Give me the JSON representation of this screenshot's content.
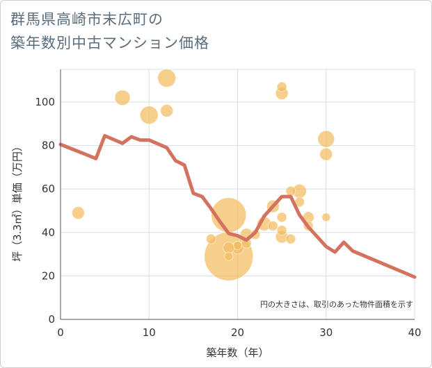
{
  "title_lines": [
    "群馬県高崎市末広町の",
    "築年数別中古マンション価格"
  ],
  "chart_data": {
    "type": "scatter",
    "title": "群馬県高崎市末広町の築年数別中古マンション価格",
    "xlabel": "築年数（年）",
    "ylabel": "坪（3.3㎡）単価（万円）",
    "xlim": [
      0,
      40
    ],
    "ylim": [
      0,
      115
    ],
    "xticks": [
      0,
      10,
      20,
      30,
      40
    ],
    "yticks": [
      0,
      20,
      40,
      60,
      80,
      100
    ],
    "grid": true,
    "note": "円の大きさは、取引のあった物件面積を示す",
    "colors": {
      "bubble": "#f3bd60",
      "line": "#d4715f",
      "grid": "#d5dfe8",
      "axis": "#555555"
    },
    "bubbles": [
      {
        "x": 2,
        "y": 49,
        "size": 9
      },
      {
        "x": 7,
        "y": 102,
        "size": 11
      },
      {
        "x": 10,
        "y": 94,
        "size": 13
      },
      {
        "x": 12,
        "y": 111,
        "size": 13
      },
      {
        "x": 12,
        "y": 96,
        "size": 9
      },
      {
        "x": 17,
        "y": 37,
        "size": 7
      },
      {
        "x": 19,
        "y": 48,
        "size": 25
      },
      {
        "x": 19,
        "y": 29,
        "size": 35
      },
      {
        "x": 19,
        "y": 33,
        "size": 8
      },
      {
        "x": 19,
        "y": 29,
        "size": 6
      },
      {
        "x": 20,
        "y": 33,
        "size": 9
      },
      {
        "x": 20,
        "y": 34,
        "size": 6
      },
      {
        "x": 21,
        "y": 39,
        "size": 9
      },
      {
        "x": 21,
        "y": 35,
        "size": 7
      },
      {
        "x": 22,
        "y": 39,
        "size": 7
      },
      {
        "x": 23,
        "y": 44,
        "size": 10
      },
      {
        "x": 24,
        "y": 52,
        "size": 9
      },
      {
        "x": 24,
        "y": 43,
        "size": 7
      },
      {
        "x": 25,
        "y": 107,
        "size": 7
      },
      {
        "x": 25,
        "y": 104,
        "size": 9
      },
      {
        "x": 25,
        "y": 47,
        "size": 7
      },
      {
        "x": 25,
        "y": 41,
        "size": 7
      },
      {
        "x": 25,
        "y": 38,
        "size": 9
      },
      {
        "x": 26,
        "y": 59,
        "size": 7
      },
      {
        "x": 26,
        "y": 37,
        "size": 7
      },
      {
        "x": 27,
        "y": 59,
        "size": 10
      },
      {
        "x": 27,
        "y": 54,
        "size": 7
      },
      {
        "x": 28,
        "y": 47,
        "size": 8
      },
      {
        "x": 28,
        "y": 43,
        "size": 7
      },
      {
        "x": 30,
        "y": 83,
        "size": 12
      },
      {
        "x": 30,
        "y": 76,
        "size": 9
      },
      {
        "x": 30,
        "y": 47,
        "size": 6
      }
    ],
    "line": [
      {
        "x": 0,
        "y": 80.5
      },
      {
        "x": 4,
        "y": 74
      },
      {
        "x": 5,
        "y": 84.5
      },
      {
        "x": 7,
        "y": 81
      },
      {
        "x": 8,
        "y": 84
      },
      {
        "x": 9,
        "y": 82.5
      },
      {
        "x": 10,
        "y": 82.5
      },
      {
        "x": 12,
        "y": 79
      },
      {
        "x": 13,
        "y": 73
      },
      {
        "x": 14,
        "y": 71
      },
      {
        "x": 15,
        "y": 58
      },
      {
        "x": 16,
        "y": 56.5
      },
      {
        "x": 17,
        "y": 51
      },
      {
        "x": 18,
        "y": 45
      },
      {
        "x": 19,
        "y": 39.5
      },
      {
        "x": 20,
        "y": 38.5
      },
      {
        "x": 21,
        "y": 36.5
      },
      {
        "x": 22,
        "y": 40
      },
      {
        "x": 23,
        "y": 47.5
      },
      {
        "x": 24,
        "y": 52
      },
      {
        "x": 25,
        "y": 56.5
      },
      {
        "x": 26,
        "y": 56.5
      },
      {
        "x": 27,
        "y": 48
      },
      {
        "x": 28,
        "y": 42.5
      },
      {
        "x": 30,
        "y": 33.5
      },
      {
        "x": 31,
        "y": 31
      },
      {
        "x": 32,
        "y": 35.5
      },
      {
        "x": 33,
        "y": 31.5
      },
      {
        "x": 40,
        "y": 19.5
      }
    ]
  }
}
